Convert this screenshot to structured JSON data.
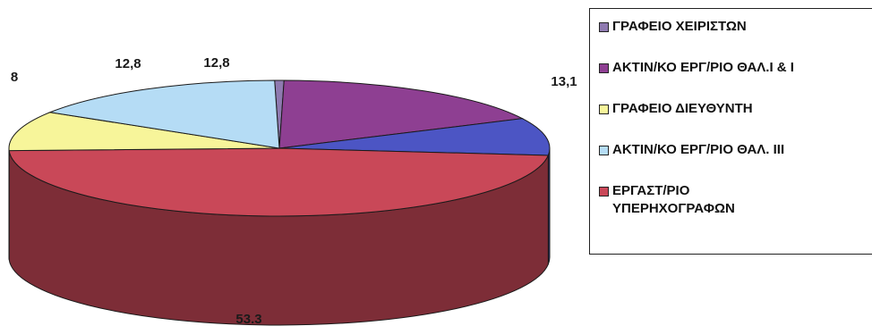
{
  "chart_data": {
    "type": "pie",
    "style": "3d",
    "slices": [
      {
        "label": "ΓΡΑΦΕΙΟ ΧΕΙΡΙΣΤΩΝ",
        "value_label": "",
        "color": "#8f7ab0"
      },
      {
        "label": "ΑΚΤΙΝ/ΚΟ ΕΡΓ/ΡΙΟ ΘΑΛ.Ι & ΙΙ",
        "value": 12.8,
        "value_label": "12,8",
        "color": "#8e3f92"
      },
      {
        "label": "",
        "value": 13.1,
        "value_label": "13,1",
        "color": "#4c55c4"
      },
      {
        "label": "ΕΡΓΑΣΤ/ΡΙΟ ΥΠΕΡΗΧΟΓΡΑΦΩΝ",
        "value": 53.3,
        "value_label": "53.3",
        "color": "#c94858"
      },
      {
        "label": "ΓΡΑΦΕΙΟ ΔΙΕΥΘΥΝΤΗ",
        "value": 8,
        "value_label": "8",
        "color": "#f7f59a"
      },
      {
        "label": "ΑΚΤΙΝ/ΚΟ ΕΡΓ/ΡΙΟ ΘΑΛ. ΙΙΙ",
        "value": 12.8,
        "value_label": "12,8",
        "color": "#b5dcf5"
      }
    ],
    "legend": {
      "placement": "right",
      "entries": [
        "ΓΡΑΦΕΙΟ ΧΕΙΡΙΣΤΩΝ",
        "ΑΚΤΙΝ/ΚΟ ΕΡΓ/ΡΙΟ ΘΑΛ.Ι & Ι",
        "ΓΡΑΦΕΙΟ ΔΙΕΥΘΥΝΤΗ",
        "ΑΚΤΙΝ/ΚΟ ΕΡΓ/ΡΙΟ ΘΑΛ. ΙΙΙ",
        "ΕΡΓΑΣΤ/ΡΙΟ ΥΠΕΡΗΧΟΓΡΑΦΩΝ"
      ],
      "swatch_colors": [
        "#8f7ab0",
        "#8e3f92",
        "#f7f59a",
        "#b5dcf5",
        "#c94858"
      ]
    }
  }
}
